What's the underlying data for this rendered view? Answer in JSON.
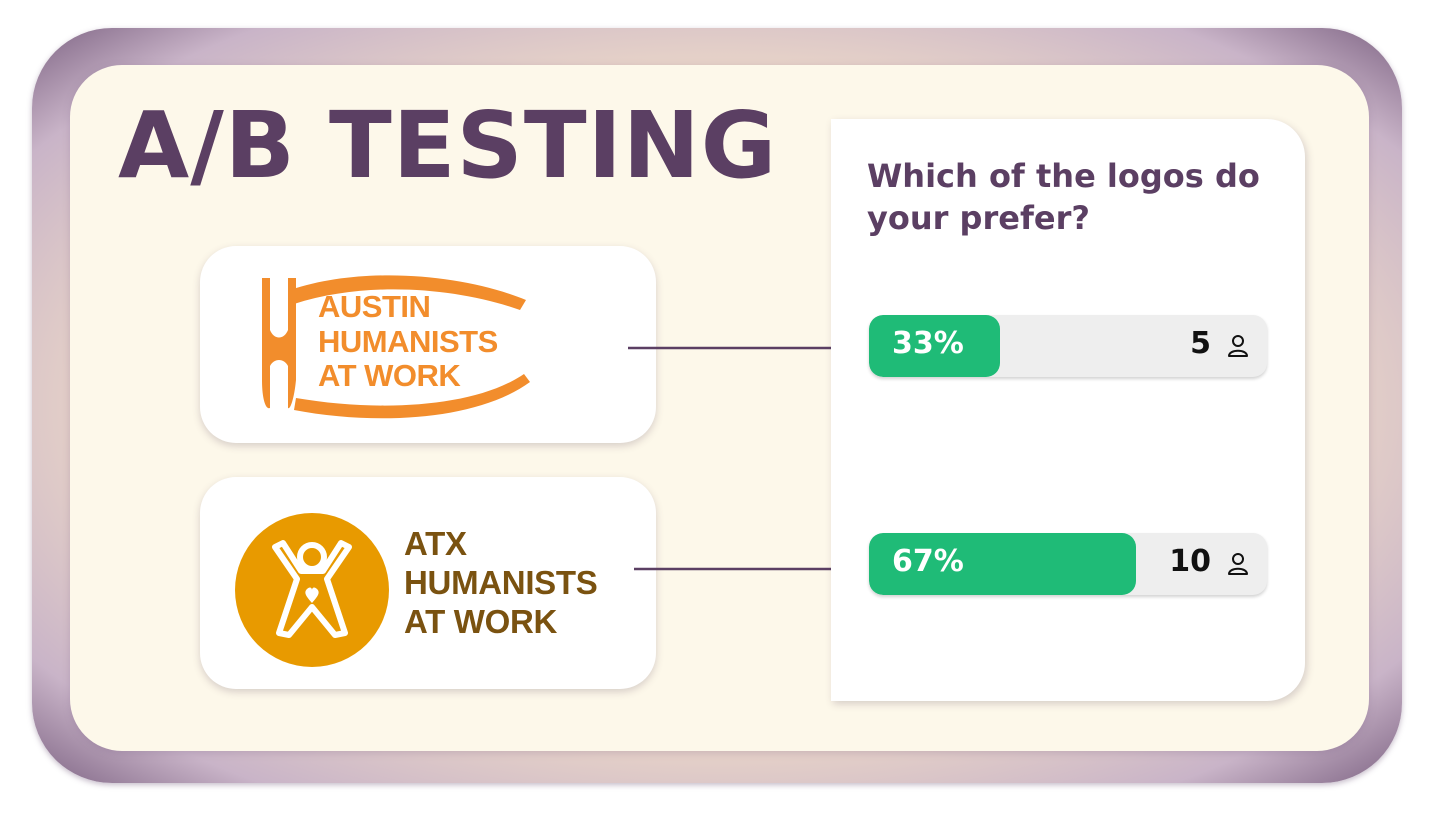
{
  "title": "A/B TESTING",
  "logos": [
    {
      "lines": [
        "AUSTIN",
        "HUMANISTS",
        "AT WORK"
      ],
      "color": "#f28d2c",
      "icon": "raised-arms-figure-icon"
    },
    {
      "lines": [
        "ATX",
        "HUMANISTS",
        "AT WORK"
      ],
      "color": "#7a5210",
      "icon": "heart-figure-circle-icon"
    }
  ],
  "poll": {
    "question": "Which of the logos do your prefer?",
    "options": [
      {
        "percent_label": "33%",
        "fraction": 0.33,
        "count": "5"
      },
      {
        "percent_label": "67%",
        "fraction": 0.67,
        "count": "10"
      }
    ],
    "bar_color": "#1fbb77",
    "text_color": "#5b3f63"
  }
}
